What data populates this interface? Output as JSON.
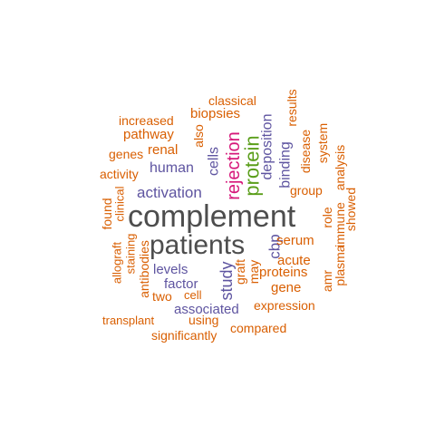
{
  "colors": {
    "orange": "#d95f02",
    "purple": "#5e54a0",
    "magenta": "#d6177a",
    "green": "#5a9e1a",
    "gray": "#4d4d4d"
  },
  "words": [
    {
      "text": "complement",
      "color": "gray",
      "weight": 10,
      "rotated": false
    },
    {
      "text": "patients",
      "color": "gray",
      "weight": 9,
      "rotated": false
    },
    {
      "text": "protein",
      "color": "green",
      "weight": 6,
      "rotated": true
    },
    {
      "text": "rejection",
      "color": "magenta",
      "weight": 5,
      "rotated": true
    },
    {
      "text": "activation",
      "color": "purple",
      "weight": 4,
      "rotated": false
    },
    {
      "text": "human",
      "color": "purple",
      "weight": 4,
      "rotated": false
    },
    {
      "text": "cells",
      "color": "purple",
      "weight": 4,
      "rotated": true
    },
    {
      "text": "study",
      "color": "purple",
      "weight": 4,
      "rotated": true
    },
    {
      "text": "binding",
      "color": "purple",
      "weight": 4,
      "rotated": true
    },
    {
      "text": "deposition",
      "color": "purple",
      "weight": 3,
      "rotated": true
    },
    {
      "text": "cbp",
      "color": "purple",
      "weight": 4,
      "rotated": true
    },
    {
      "text": "levels",
      "color": "purple",
      "weight": 3,
      "rotated": false
    },
    {
      "text": "factor",
      "color": "purple",
      "weight": 3,
      "rotated": false
    },
    {
      "text": "associated",
      "color": "purple",
      "weight": 3,
      "rotated": false
    },
    {
      "text": "classical",
      "color": "orange",
      "weight": 2,
      "rotated": false
    },
    {
      "text": "results",
      "color": "orange",
      "weight": 2,
      "rotated": true
    },
    {
      "text": "increased",
      "color": "orange",
      "weight": 2,
      "rotated": false
    },
    {
      "text": "biopsies",
      "color": "orange",
      "weight": 2,
      "rotated": false
    },
    {
      "text": "pathway",
      "color": "orange",
      "weight": 2,
      "rotated": false
    },
    {
      "text": "also",
      "color": "orange",
      "weight": 2,
      "rotated": true
    },
    {
      "text": "genes",
      "color": "orange",
      "weight": 2,
      "rotated": false
    },
    {
      "text": "renal",
      "color": "orange",
      "weight": 2,
      "rotated": false
    },
    {
      "text": "activity",
      "color": "orange",
      "weight": 2,
      "rotated": false
    },
    {
      "text": "disease",
      "color": "orange",
      "weight": 2,
      "rotated": true
    },
    {
      "text": "system",
      "color": "orange",
      "weight": 2,
      "rotated": true
    },
    {
      "text": "group",
      "color": "orange",
      "weight": 2,
      "rotated": false
    },
    {
      "text": "analysis",
      "color": "orange",
      "weight": 2,
      "rotated": true
    },
    {
      "text": "clinical",
      "color": "orange",
      "weight": 2,
      "rotated": true
    },
    {
      "text": "found",
      "color": "orange",
      "weight": 2,
      "rotated": true
    },
    {
      "text": "role",
      "color": "orange",
      "weight": 2,
      "rotated": true
    },
    {
      "text": "immune",
      "color": "orange",
      "weight": 2,
      "rotated": true
    },
    {
      "text": "showed",
      "color": "orange",
      "weight": 2,
      "rotated": true
    },
    {
      "text": "serum",
      "color": "orange",
      "weight": 2,
      "rotated": false
    },
    {
      "text": "acute",
      "color": "orange",
      "weight": 2,
      "rotated": false
    },
    {
      "text": "staining",
      "color": "orange",
      "weight": 2,
      "rotated": true
    },
    {
      "text": "allograft",
      "color": "orange",
      "weight": 2,
      "rotated": true
    },
    {
      "text": "antibodies",
      "color": "orange",
      "weight": 2,
      "rotated": true
    },
    {
      "text": "graft",
      "color": "orange",
      "weight": 2,
      "rotated": true
    },
    {
      "text": "may",
      "color": "orange",
      "weight": 2,
      "rotated": true
    },
    {
      "text": "proteins",
      "color": "orange",
      "weight": 2,
      "rotated": false
    },
    {
      "text": "amr",
      "color": "orange",
      "weight": 2,
      "rotated": true
    },
    {
      "text": "plasma",
      "color": "orange",
      "weight": 2,
      "rotated": true
    },
    {
      "text": "gene",
      "color": "orange",
      "weight": 2,
      "rotated": false
    },
    {
      "text": "two",
      "color": "orange",
      "weight": 2,
      "rotated": false
    },
    {
      "text": "cell",
      "color": "orange",
      "weight": 2,
      "rotated": false
    },
    {
      "text": "expression",
      "color": "orange",
      "weight": 2,
      "rotated": false
    },
    {
      "text": "transplant",
      "color": "orange",
      "weight": 2,
      "rotated": false
    },
    {
      "text": "using",
      "color": "orange",
      "weight": 2,
      "rotated": false
    },
    {
      "text": "compared",
      "color": "orange",
      "weight": 2,
      "rotated": false
    },
    {
      "text": "significantly",
      "color": "orange",
      "weight": 2,
      "rotated": false
    }
  ]
}
